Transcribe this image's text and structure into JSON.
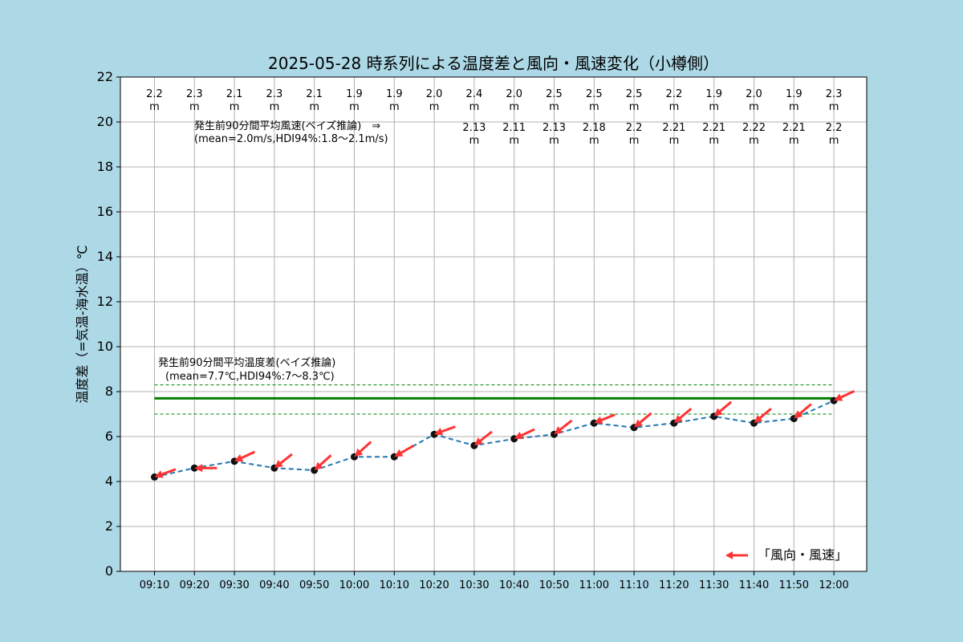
{
  "chart_data": {
    "type": "line",
    "title": "2025-05-28 時系列による温度差と風向・風速変化（小樽側）",
    "ylabel": "温度差（=気温-海水温）℃",
    "xlabel": "",
    "ylim": [
      0,
      22
    ],
    "yticks": [
      "0",
      "2",
      "4",
      "6",
      "8",
      "10",
      "12",
      "14",
      "16",
      "18",
      "20",
      "22"
    ],
    "grid": true,
    "legend_position": "lower-right",
    "categories": [
      "09:10",
      "09:20",
      "09:30",
      "09:40",
      "09:50",
      "10:00",
      "10:10",
      "10:20",
      "10:30",
      "10:40",
      "10:50",
      "11:00",
      "11:10",
      "11:20",
      "11:30",
      "11:40",
      "11:50",
      "12:00"
    ],
    "series": [
      {
        "values": [
          4.2,
          4.6,
          4.9,
          4.6,
          4.5,
          5.1,
          5.1,
          6.1,
          5.6,
          5.9,
          6.1,
          6.6,
          6.4,
          6.6,
          6.9,
          6.6,
          6.8,
          7.6
        ],
        "color": "#1f77b4"
      }
    ],
    "wind_speed_labels": [
      "2.2",
      "2.3",
      "2.1",
      "2.3",
      "2.1",
      "1.9",
      "1.9",
      "2.0",
      "2.4",
      "2.0",
      "2.5",
      "2.5",
      "2.5",
      "2.2",
      "1.9",
      "2.0",
      "1.9",
      "2.3"
    ],
    "wind_arrow_directions_deg": [
      20,
      0,
      25,
      38,
      42,
      42,
      30,
      20,
      38,
      25,
      38,
      22,
      40,
      40,
      40,
      40,
      40,
      25
    ],
    "wind_arrow_color": "#ff3333",
    "posterior_wind_labels": [
      "2.13",
      "2.11",
      "2.13",
      "2.18",
      "2.2",
      "2.21",
      "2.21",
      "2.22",
      "2.21",
      "2.2"
    ],
    "posterior_wind_start_index": 8,
    "unit_label": "m",
    "temp_band": {
      "mean": 7.7,
      "lower": 7.0,
      "upper": 8.3,
      "line_color": "#008000"
    },
    "annotations": {
      "wind_text_line1": "発生前90分間平均風速(ベイズ推論)　⇒",
      "wind_text_line2": "(mean=2.0m/s,HDI94%:1.8～2.1m/s)",
      "temp_text_line1": "発生前90分間平均温度差(ベイズ推論)",
      "temp_text_line2": "(mean=7.7℃,HDI94%:7～8.3℃)"
    },
    "legend_label": "「風向・風速」"
  }
}
